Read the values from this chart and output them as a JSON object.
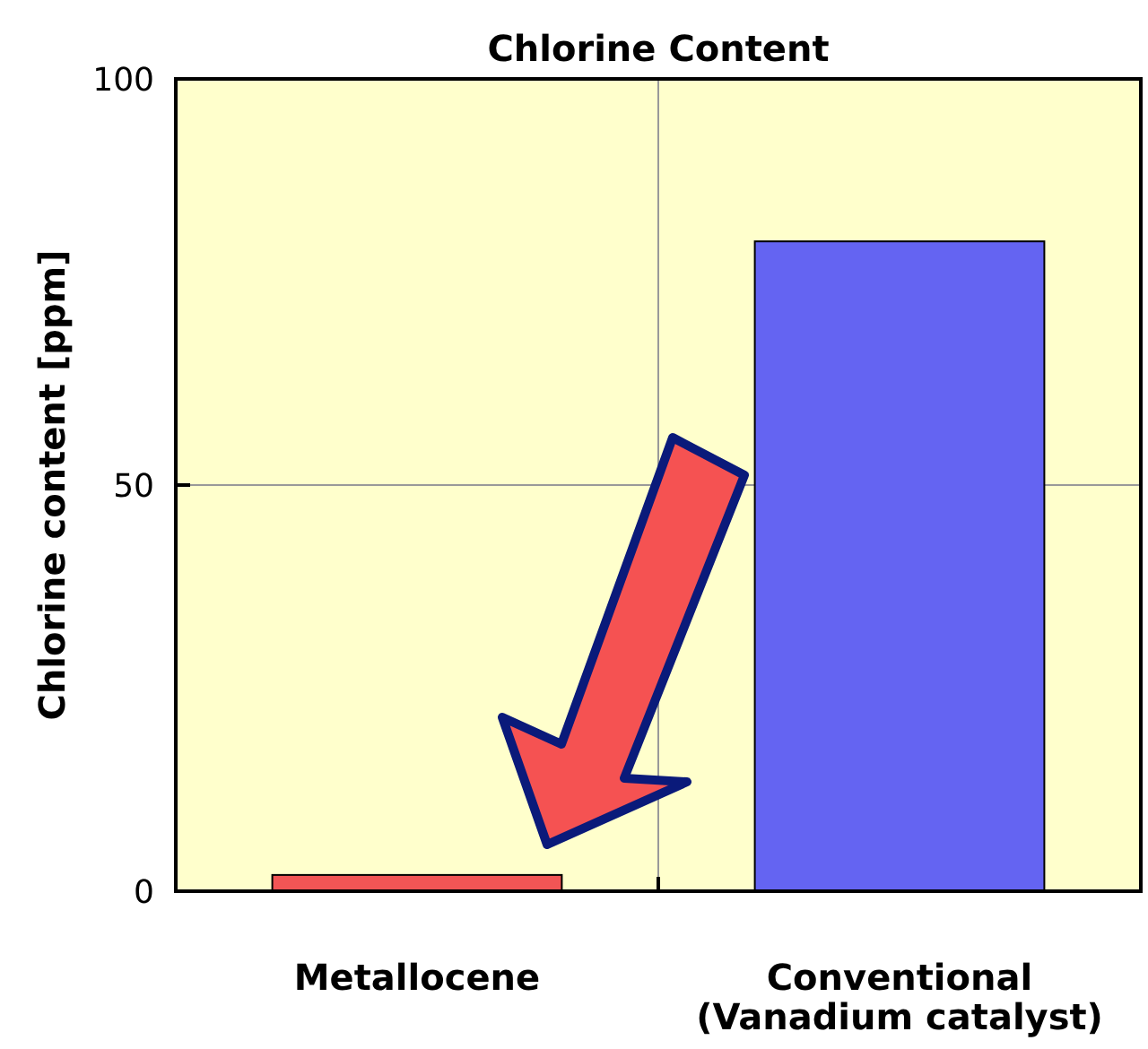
{
  "chart_data": {
    "type": "bar",
    "title": "Chlorine Content",
    "ylabel": "Chlorine content [ppm]",
    "categories": [
      "Metallocene",
      "Conventional\n(Vanadium catalyst)"
    ],
    "values": [
      2,
      80
    ],
    "colors": [
      "#f25555",
      "#6464f2"
    ],
    "ylim": [
      0,
      100
    ],
    "yticks": [
      0,
      50,
      100
    ],
    "grid": true
  }
}
